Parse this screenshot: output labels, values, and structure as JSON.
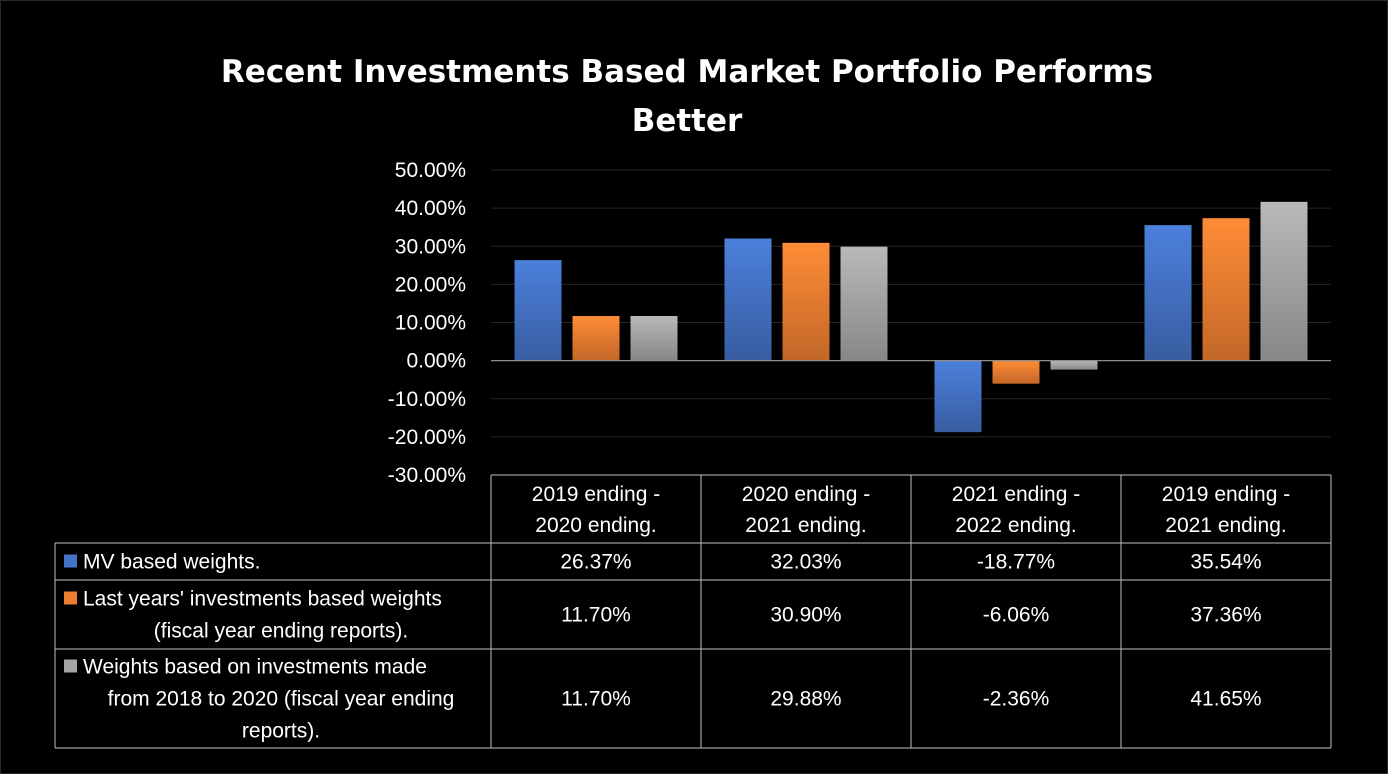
{
  "chart_data": {
    "type": "bar",
    "title_lines": [
      "Recent Investments Based Market Portfolio Performs",
      "Better"
    ],
    "categories": [
      [
        "2019 ending -",
        "2020 ending."
      ],
      [
        "2020 ending -",
        "2021 ending."
      ],
      [
        "2021 ending -",
        "2022 ending."
      ],
      [
        "2019 ending -",
        "2021 ending."
      ]
    ],
    "series": [
      {
        "name_lines": [
          "MV based weights."
        ],
        "color": "#4472C4",
        "values": [
          26.37,
          32.03,
          -18.77,
          35.54
        ],
        "value_labels": [
          "26.37%",
          "32.03%",
          "-18.77%",
          "35.54%"
        ]
      },
      {
        "name_lines": [
          "Last years' investments based weights",
          "(fiscal year ending reports)."
        ],
        "color": "#ED7D31",
        "values": [
          11.7,
          30.9,
          -6.06,
          37.36
        ],
        "value_labels": [
          "11.70%",
          "30.90%",
          "-6.06%",
          "37.36%"
        ]
      },
      {
        "name_lines": [
          "Weights based on investments made",
          "from 2018 to 2020 (fiscal year ending",
          "reports)."
        ],
        "color": "#A5A5A5",
        "values": [
          11.7,
          29.88,
          -2.36,
          41.65
        ],
        "value_labels": [
          "11.70%",
          "29.88%",
          "-2.36%",
          "41.65%"
        ]
      }
    ],
    "ylim": [
      -30,
      50
    ],
    "yticks": [
      50,
      40,
      30,
      20,
      10,
      0,
      -10,
      -20,
      -30
    ],
    "ytick_labels": [
      "50.00%",
      "40.00%",
      "30.00%",
      "20.00%",
      "10.00%",
      "0.00%",
      "-10.00%",
      "-20.00%",
      "-30.00%"
    ],
    "grid": true,
    "legend": "data-table-below",
    "xlabel": "",
    "ylabel": ""
  }
}
